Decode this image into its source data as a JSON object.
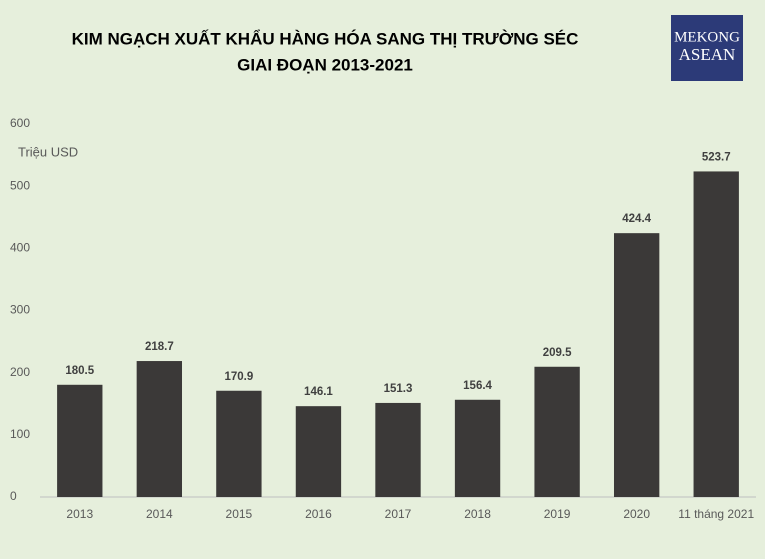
{
  "chart_data": {
    "type": "bar",
    "title": "KIM NGẠCH XUẤT KHẨU HÀNG HÓA SANG THỊ TRƯỜNG SÉC",
    "subtitle": "GIAI ĐOẠN 2013-2021",
    "y_label": "Triệu USD",
    "categories": [
      "2013",
      "2014",
      "2015",
      "2016",
      "2017",
      "2018",
      "2019",
      "2020",
      "11 tháng 2021"
    ],
    "values": [
      180.5,
      218.7,
      170.9,
      146.1,
      151.3,
      156.4,
      209.5,
      424.4,
      523.7
    ],
    "color": "#3b3938",
    "ylim": [
      0,
      600
    ],
    "yticks": [
      0,
      100,
      200,
      300,
      400,
      500,
      600
    ],
    "grid": false
  },
  "logo": {
    "line1": "MEKONG",
    "line2": "ASEAN"
  }
}
